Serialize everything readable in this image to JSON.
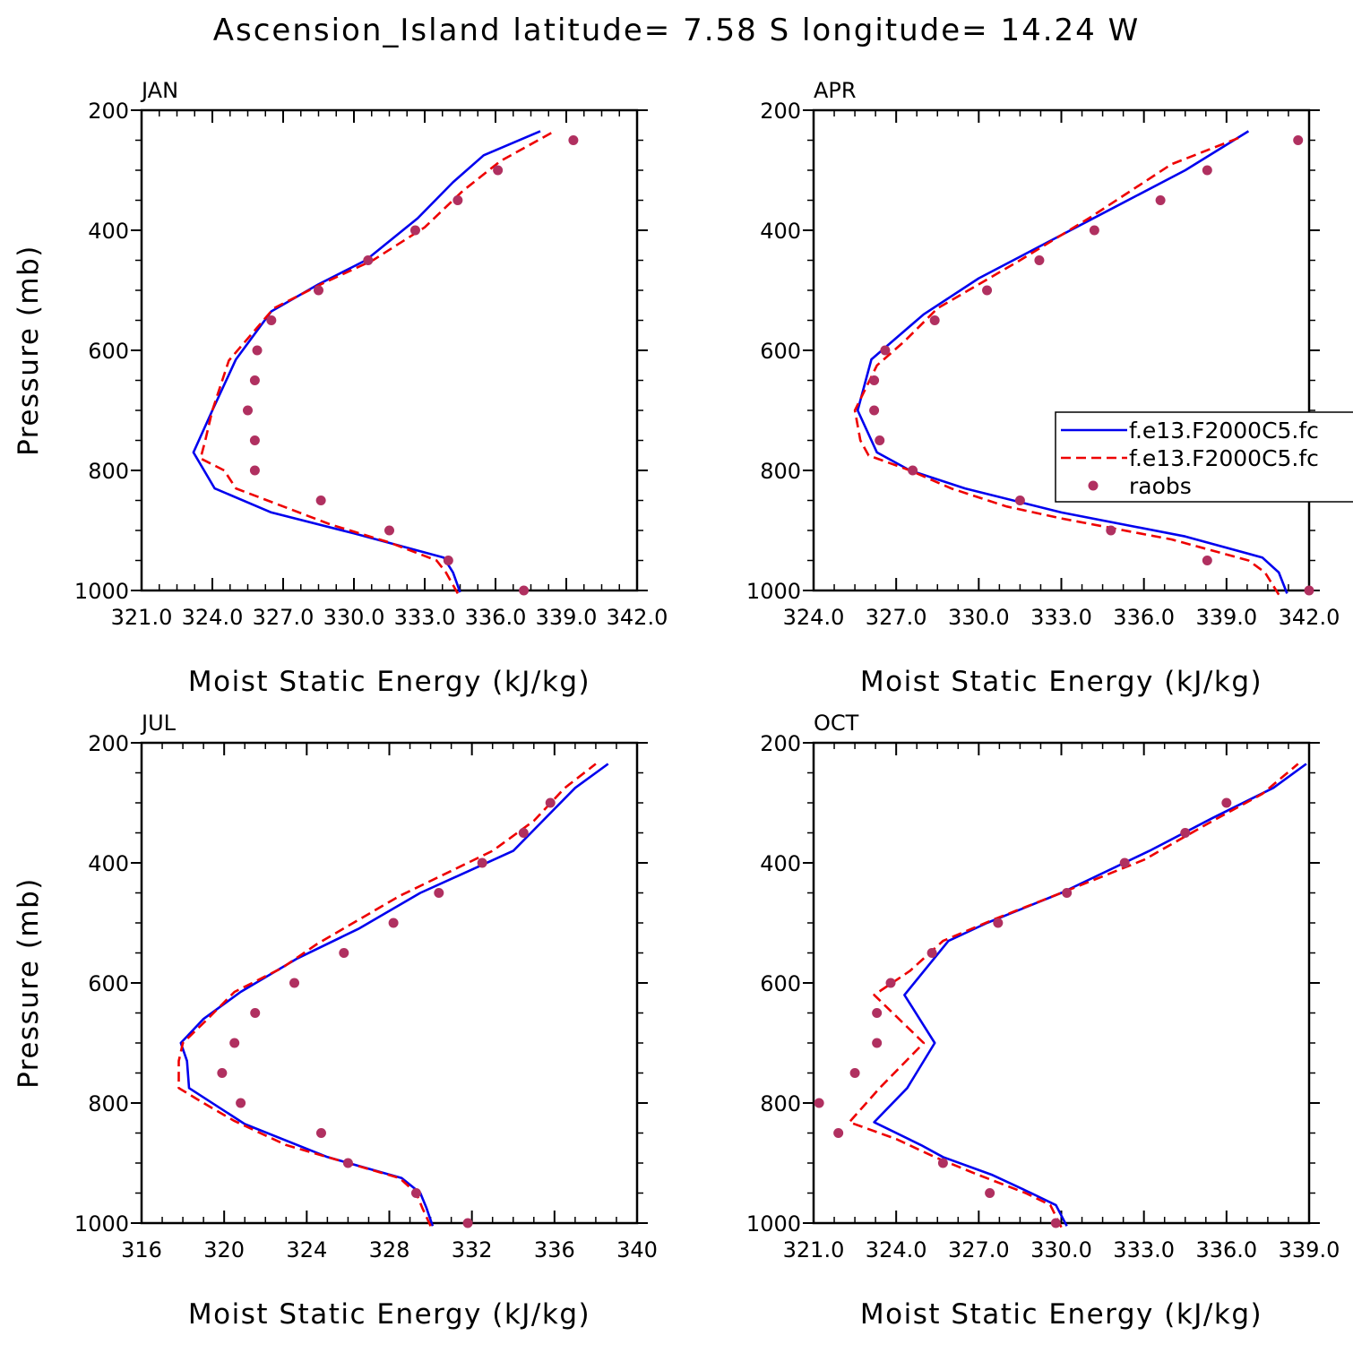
{
  "title": "Ascension_Island  latitude= 7.58 S longitude= 14.24 W",
  "colors": {
    "model1": "#0000ee",
    "model2": "#ee0000",
    "raobs": "#b03060"
  },
  "legend": {
    "panel_index": 1,
    "entries": [
      {
        "label": "f.e13.F2000C5.fc",
        "style": "solid",
        "color": "#0000ee"
      },
      {
        "label": "f.e13.F2000C5.fc",
        "style": "dashed",
        "color": "#ee0000"
      },
      {
        "label": "raobs",
        "style": "marker",
        "color": "#b03060"
      }
    ]
  },
  "chart_data": [
    {
      "type": "line",
      "label": "JAN",
      "xlabel": "Moist Static Energy (kJ/kg)",
      "ylabel": "Pressure (mb)",
      "xlim": [
        321.0,
        342.0
      ],
      "xticks": [
        321.0,
        324.0,
        327.0,
        330.0,
        333.0,
        336.0,
        339.0,
        342.0
      ],
      "xtick_labels": [
        "321.0",
        "324.0",
        "327.0",
        "330.0",
        "333.0",
        "336.0",
        "339.0",
        "342.0"
      ],
      "ylim": [
        200,
        1000
      ],
      "yticks": [
        200,
        400,
        600,
        800,
        1000
      ],
      "ytick_labels": [
        "200",
        "400",
        "600",
        "800",
        "1000"
      ],
      "series": [
        {
          "style": "solid",
          "color": "#0000ee",
          "points": [
            [
              334.5,
              1003
            ],
            [
              334.2,
              970
            ],
            [
              333.8,
              945
            ],
            [
              330.0,
              905
            ],
            [
              326.5,
              870
            ],
            [
              324.1,
              830
            ],
            [
              323.2,
              770
            ],
            [
              324.0,
              700
            ],
            [
              325.0,
              615
            ],
            [
              326.5,
              535
            ],
            [
              328.5,
              490
            ],
            [
              330.5,
              450
            ],
            [
              332.7,
              380
            ],
            [
              334.2,
              320
            ],
            [
              335.5,
              275
            ],
            [
              337.9,
              235
            ]
          ]
        },
        {
          "style": "dashed",
          "color": "#ee0000",
          "points": [
            [
              334.4,
              1005
            ],
            [
              333.9,
              970
            ],
            [
              333.5,
              950
            ],
            [
              331.5,
              920
            ],
            [
              329.0,
              890
            ],
            [
              327.0,
              860
            ],
            [
              325.0,
              830
            ],
            [
              324.5,
              800
            ],
            [
              323.5,
              780
            ],
            [
              323.7,
              750
            ],
            [
              324.0,
              700
            ],
            [
              324.7,
              617
            ],
            [
              326.6,
              530
            ],
            [
              328.6,
              490
            ],
            [
              330.8,
              450
            ],
            [
              333.0,
              395
            ],
            [
              334.6,
              335
            ],
            [
              336.2,
              285
            ],
            [
              338.5,
              235
            ]
          ]
        }
      ],
      "raobs": [
        [
          339.3,
          250
        ],
        [
          336.1,
          300
        ],
        [
          334.4,
          350
        ],
        [
          332.6,
          400
        ],
        [
          330.6,
          450
        ],
        [
          328.5,
          500
        ],
        [
          326.5,
          550
        ],
        [
          325.9,
          600
        ],
        [
          325.8,
          650
        ],
        [
          325.5,
          700
        ],
        [
          325.8,
          750
        ],
        [
          325.8,
          800
        ],
        [
          328.6,
          850
        ],
        [
          331.5,
          900
        ],
        [
          334.0,
          950
        ],
        [
          337.2,
          1000
        ]
      ]
    },
    {
      "type": "line",
      "label": "APR",
      "xlabel": "Moist Static Energy (kJ/kg)",
      "ylabel": "",
      "xlim": [
        324.0,
        342.0
      ],
      "xticks": [
        324.0,
        327.0,
        330.0,
        333.0,
        336.0,
        339.0,
        342.0
      ],
      "xtick_labels": [
        "324.0",
        "327.0",
        "330.0",
        "333.0",
        "336.0",
        "339.0",
        "342.0"
      ],
      "ylim": [
        200,
        1000
      ],
      "yticks": [
        200,
        400,
        600,
        800,
        1000
      ],
      "ytick_labels": [
        "200",
        "400",
        "600",
        "800",
        "1000"
      ],
      "series": [
        {
          "style": "solid",
          "color": "#0000ee",
          "points": [
            [
              341.2,
              1005
            ],
            [
              340.9,
              970
            ],
            [
              340.3,
              945
            ],
            [
              337.5,
              910
            ],
            [
              333.0,
              870
            ],
            [
              329.5,
              830
            ],
            [
              327.5,
              800
            ],
            [
              326.3,
              770
            ],
            [
              325.6,
              700
            ],
            [
              326.1,
              615
            ],
            [
              328.0,
              540
            ],
            [
              330.0,
              480
            ],
            [
              332.5,
              420
            ],
            [
              335.0,
              360
            ],
            [
              337.5,
              300
            ],
            [
              339.8,
              235
            ]
          ]
        },
        {
          "style": "dashed",
          "color": "#ee0000",
          "points": [
            [
              340.9,
              1007
            ],
            [
              340.4,
              970
            ],
            [
              339.8,
              950
            ],
            [
              337.0,
              915
            ],
            [
              333.0,
              880
            ],
            [
              331.0,
              860
            ],
            [
              329.0,
              830
            ],
            [
              327.5,
              800
            ],
            [
              326.0,
              775
            ],
            [
              325.7,
              750
            ],
            [
              325.5,
              700
            ],
            [
              326.3,
              625
            ],
            [
              327.3,
              585
            ],
            [
              328.5,
              530
            ],
            [
              331.5,
              450
            ],
            [
              334.0,
              380
            ],
            [
              337.0,
              290
            ],
            [
              339.5,
              245
            ]
          ]
        }
      ],
      "raobs": [
        [
          341.6,
          250
        ],
        [
          338.3,
          300
        ],
        [
          336.6,
          350
        ],
        [
          334.2,
          400
        ],
        [
          332.2,
          450
        ],
        [
          330.3,
          500
        ],
        [
          328.4,
          550
        ],
        [
          326.6,
          600
        ],
        [
          326.2,
          650
        ],
        [
          326.2,
          700
        ],
        [
          326.4,
          750
        ],
        [
          327.6,
          800
        ],
        [
          331.5,
          850
        ],
        [
          334.8,
          900
        ],
        [
          338.3,
          950
        ],
        [
          342.0,
          1000
        ]
      ]
    },
    {
      "type": "line",
      "label": "JUL",
      "xlabel": "Moist Static Energy (kJ/kg)",
      "ylabel": "Pressure (mb)",
      "xlim": [
        316,
        340
      ],
      "xticks": [
        316,
        320,
        324,
        328,
        332,
        336,
        340
      ],
      "xtick_labels": [
        "316",
        "320",
        "324",
        "328",
        "332",
        "336",
        "340"
      ],
      "ylim": [
        200,
        1000
      ],
      "yticks": [
        200,
        400,
        600,
        800,
        1000
      ],
      "ytick_labels": [
        "200",
        "400",
        "600",
        "800",
        "1000"
      ],
      "series": [
        {
          "style": "solid",
          "color": "#0000ee",
          "points": [
            [
              330.1,
              1005
            ],
            [
              329.8,
              975
            ],
            [
              329.5,
              950
            ],
            [
              328.6,
              925
            ],
            [
              325.0,
              890
            ],
            [
              321.0,
              835
            ],
            [
              318.3,
              775
            ],
            [
              318.2,
              730
            ],
            [
              317.9,
              700
            ],
            [
              319.0,
              660
            ],
            [
              320.8,
              615
            ],
            [
              323.5,
              560
            ],
            [
              326.5,
              510
            ],
            [
              329.5,
              450
            ],
            [
              334.0,
              380
            ],
            [
              337.0,
              275
            ],
            [
              338.6,
              235
            ]
          ]
        },
        {
          "style": "dashed",
          "color": "#ee0000",
          "points": [
            [
              330.0,
              1005
            ],
            [
              329.6,
              975
            ],
            [
              329.3,
              950
            ],
            [
              328.5,
              925
            ],
            [
              326.0,
              900
            ],
            [
              323.0,
              870
            ],
            [
              320.5,
              830
            ],
            [
              319.0,
              800
            ],
            [
              317.8,
              775
            ],
            [
              317.8,
              730
            ],
            [
              318.0,
              700
            ],
            [
              319.2,
              660
            ],
            [
              320.5,
              615
            ],
            [
              322.8,
              575
            ],
            [
              324.5,
              535
            ],
            [
              328.5,
              455
            ],
            [
              333.0,
              380
            ],
            [
              335.0,
              330
            ],
            [
              336.5,
              275
            ],
            [
              338.0,
              235
            ]
          ]
        }
      ],
      "raobs": [
        [
          335.8,
          300
        ],
        [
          334.5,
          350
        ],
        [
          332.5,
          400
        ],
        [
          330.4,
          450
        ],
        [
          328.2,
          500
        ],
        [
          325.8,
          550
        ],
        [
          323.4,
          600
        ],
        [
          321.5,
          650
        ],
        [
          320.5,
          700
        ],
        [
          319.9,
          750
        ],
        [
          320.8,
          800
        ],
        [
          324.7,
          850
        ],
        [
          326.0,
          900
        ],
        [
          329.3,
          950
        ],
        [
          331.8,
          1000
        ]
      ]
    },
    {
      "type": "line",
      "label": "OCT",
      "xlabel": "Moist Static Energy (kJ/kg)",
      "ylabel": "",
      "xlim": [
        321.0,
        339.0
      ],
      "xticks": [
        321.0,
        324.0,
        327.0,
        330.0,
        333.0,
        336.0,
        339.0
      ],
      "xtick_labels": [
        "321.0",
        "324.0",
        "327.0",
        "330.0",
        "333.0",
        "336.0",
        "339.0"
      ],
      "ylim": [
        200,
        1000
      ],
      "yticks": [
        200,
        400,
        600,
        800,
        1000
      ],
      "ytick_labels": [
        "200",
        "400",
        "600",
        "800",
        "1000"
      ],
      "series": [
        {
          "style": "solid",
          "color": "#0000ee",
          "points": [
            [
              330.2,
              1005
            ],
            [
              329.8,
              970
            ],
            [
              328.9,
              950
            ],
            [
              327.5,
              920
            ],
            [
              325.7,
              890
            ],
            [
              324.9,
              870
            ],
            [
              323.2,
              832
            ],
            [
              324.4,
              775
            ],
            [
              325.4,
              700
            ],
            [
              324.3,
              620
            ],
            [
              325.9,
              530
            ],
            [
              327.3,
              500
            ],
            [
              330.0,
              450
            ],
            [
              333.2,
              380
            ],
            [
              335.5,
              325
            ],
            [
              337.7,
              275
            ],
            [
              338.9,
              235
            ]
          ]
        },
        {
          "style": "dashed",
          "color": "#ee0000",
          "points": [
            [
              330.0,
              1007
            ],
            [
              329.6,
              970
            ],
            [
              328.7,
              950
            ],
            [
              327.0,
              920
            ],
            [
              325.4,
              890
            ],
            [
              324.0,
              860
            ],
            [
              322.3,
              832
            ],
            [
              323.4,
              775
            ],
            [
              325.0,
              700
            ],
            [
              323.2,
              620
            ],
            [
              324.5,
              580
            ],
            [
              325.7,
              530
            ],
            [
              327.5,
              495
            ],
            [
              330.0,
              450
            ],
            [
              333.0,
              395
            ],
            [
              335.5,
              330
            ],
            [
              337.3,
              285
            ],
            [
              338.6,
              235
            ]
          ]
        }
      ],
      "raobs": [
        [
          336.0,
          300
        ],
        [
          334.5,
          350
        ],
        [
          332.3,
          400
        ],
        [
          330.2,
          450
        ],
        [
          327.7,
          500
        ],
        [
          325.3,
          550
        ],
        [
          323.8,
          600
        ],
        [
          323.3,
          650
        ],
        [
          323.3,
          700
        ],
        [
          322.5,
          750
        ],
        [
          321.2,
          800
        ],
        [
          321.9,
          850
        ],
        [
          325.7,
          900
        ],
        [
          327.4,
          950
        ],
        [
          329.8,
          1000
        ]
      ]
    }
  ]
}
